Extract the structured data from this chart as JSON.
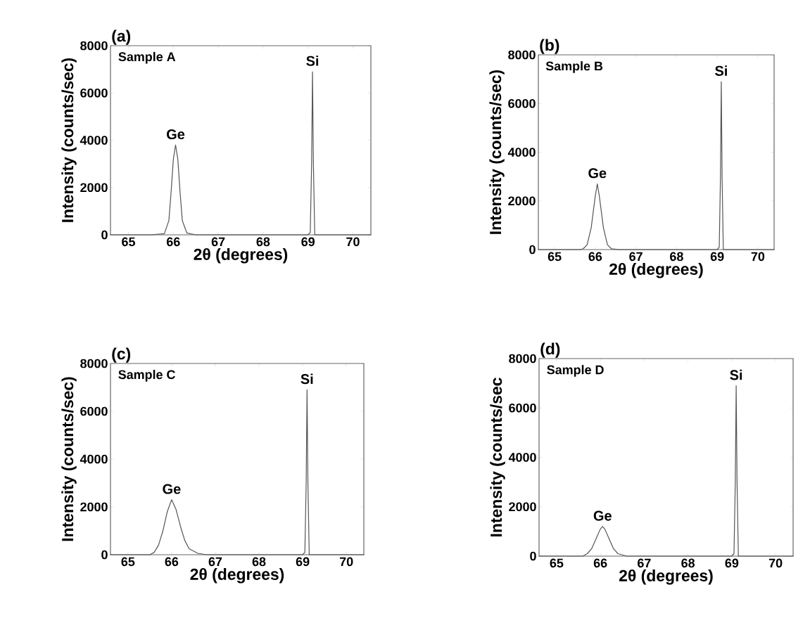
{
  "chart_data": [
    {
      "type": "line",
      "title": "(a)",
      "xlabel": "2θ (degrees)",
      "ylabel": "Intensity (counts/sec)",
      "xlim": [
        64.6,
        70.4
      ],
      "ylim": [
        0,
        8000
      ],
      "xticks": [
        65,
        66,
        67,
        68,
        69,
        70
      ],
      "yticks": [
        0,
        2000,
        4000,
        6000,
        8000
      ],
      "grid": false,
      "series": [
        {
          "color": "#555555",
          "x": [
            64.6,
            65.5,
            65.8,
            65.9,
            65.95,
            66.0,
            66.05,
            66.1,
            66.15,
            66.2,
            66.3,
            66.5,
            69.0,
            69.05,
            69.08,
            69.1,
            69.12,
            69.15,
            70.4
          ],
          "values": [
            0,
            0,
            50,
            600,
            1800,
            3200,
            3800,
            3200,
            1800,
            600,
            80,
            0,
            0,
            100,
            3000,
            6900,
            3000,
            0,
            0
          ]
        }
      ],
      "annotations": [
        "Sample A",
        {
          "text": "Ge",
          "x": 66.05,
          "y": 3800
        },
        {
          "text": "Si",
          "x": 69.1,
          "y": 6900
        }
      ]
    },
    {
      "type": "line",
      "title": "(b)",
      "xlabel": "2θ (degrees)",
      "ylabel": "Intensity (counts/sec)",
      "xlim": [
        64.6,
        70.4
      ],
      "ylim": [
        0,
        8000
      ],
      "xticks": [
        65,
        66,
        67,
        68,
        69,
        70
      ],
      "yticks": [
        0,
        2000,
        4000,
        6000,
        8000
      ],
      "grid": false,
      "series": [
        {
          "color": "#555555",
          "x": [
            64.6,
            65.6,
            65.7,
            65.8,
            65.9,
            66.0,
            66.05,
            66.1,
            66.2,
            66.3,
            66.4,
            66.6,
            69.0,
            69.05,
            69.08,
            69.1,
            69.12,
            69.15,
            70.4
          ],
          "values": [
            0,
            0,
            30,
            200,
            900,
            2200,
            2700,
            2200,
            900,
            200,
            30,
            0,
            0,
            100,
            3000,
            6900,
            3000,
            0,
            0
          ]
        }
      ],
      "annotations": [
        "Sample B",
        {
          "text": "Ge",
          "x": 66.05,
          "y": 2700
        },
        {
          "text": "Si",
          "x": 69.1,
          "y": 6900
        }
      ]
    },
    {
      "type": "line",
      "title": "(c)",
      "xlabel": "2θ (degrees)",
      "ylabel": "Intensity (counts/sec)",
      "xlim": [
        64.6,
        70.4
      ],
      "ylim": [
        0,
        8000
      ],
      "xticks": [
        65,
        66,
        67,
        68,
        69,
        70
      ],
      "yticks": [
        0,
        2000,
        4000,
        6000,
        8000
      ],
      "grid": false,
      "series": [
        {
          "color": "#555555",
          "x": [
            64.6,
            65.5,
            65.6,
            65.7,
            65.8,
            65.9,
            66.0,
            66.1,
            66.2,
            66.3,
            66.4,
            66.6,
            66.8,
            69.0,
            69.05,
            69.08,
            69.1,
            69.12,
            69.15,
            70.4
          ],
          "values": [
            0,
            0,
            100,
            400,
            1000,
            1800,
            2300,
            1900,
            1200,
            600,
            250,
            60,
            0,
            0,
            100,
            3000,
            6900,
            3000,
            0,
            0
          ]
        }
      ],
      "annotations": [
        "Sample C",
        {
          "text": "Ge",
          "x": 66.0,
          "y": 2300
        },
        {
          "text": "Si",
          "x": 69.1,
          "y": 6900
        }
      ]
    },
    {
      "type": "line",
      "title": "(d)",
      "xlabel": "2θ (degrees)",
      "ylabel": "Intensity (counts/sec",
      "xlim": [
        64.6,
        70.4
      ],
      "ylim": [
        0,
        8000
      ],
      "xticks": [
        65,
        66,
        67,
        68,
        69,
        70
      ],
      "yticks": [
        0,
        2000,
        4000,
        6000,
        8000
      ],
      "grid": false,
      "series": [
        {
          "color": "#555555",
          "x": [
            64.6,
            65.6,
            65.7,
            65.8,
            65.9,
            66.0,
            66.05,
            66.1,
            66.2,
            66.3,
            66.4,
            66.6,
            69.0,
            69.05,
            69.08,
            69.1,
            69.12,
            69.15,
            70.4
          ],
          "values": [
            0,
            0,
            100,
            300,
            700,
            1100,
            1200,
            1100,
            700,
            300,
            100,
            0,
            0,
            100,
            3000,
            6900,
            3000,
            0,
            0
          ]
        }
      ],
      "annotations": [
        "Sample D",
        {
          "text": "Ge",
          "x": 66.05,
          "y": 1200
        },
        {
          "text": "Si",
          "x": 69.1,
          "y": 6900
        }
      ]
    }
  ]
}
